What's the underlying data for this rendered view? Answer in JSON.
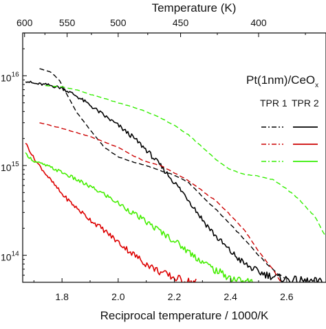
{
  "chart_data": {
    "type": "line",
    "title": "",
    "xlabel": "Reciprocal temperature / 1000/K",
    "x2label": "Temperature (K)",
    "ylabel": "",
    "yscale": "log",
    "xlim": [
      1.66,
      2.74
    ],
    "ylim": [
      50000000000000.0,
      3e+16
    ],
    "xticks": [
      1.8,
      2.0,
      2.2,
      2.4,
      2.6
    ],
    "xtick_labels": [
      "1.8",
      "2.0",
      "2.2",
      "2.4",
      "2.6"
    ],
    "top_ticks": [
      600,
      550,
      500,
      450,
      400
    ],
    "top_tick_labels": [
      "600",
      "550",
      "500",
      "450",
      "400"
    ],
    "yticks": [
      100000000000000.0,
      1000000000000000.0,
      1e+16
    ],
    "ytick_labels": [
      {
        "base": "10",
        "exp": "14"
      },
      {
        "base": "10",
        "exp": "15"
      },
      {
        "base": "10",
        "exp": "16"
      }
    ],
    "grid": false,
    "legend": {
      "title_main": "Pt(1nm)/CeO",
      "title_sub": "x",
      "col1": "TPR 1",
      "col2": "TPR 2",
      "placement": "top-right"
    },
    "series": [
      {
        "run": "TPR 1",
        "color": "#000000",
        "dash": "dash",
        "x": [
          1.72,
          1.76,
          1.79,
          1.82,
          1.85,
          1.9,
          1.95,
          2.0,
          2.05,
          2.1,
          2.15,
          2.2,
          2.25,
          2.3,
          2.35,
          2.4,
          2.45,
          2.5,
          2.54,
          2.57,
          2.6
        ],
        "y": [
          1.2e+16,
          1.1e+16,
          9000000000000000.0,
          6000000000000000.0,
          4000000000000000.0,
          2500000000000000.0,
          1600000000000000.0,
          1250000000000000.0,
          1100000000000000.0,
          1000000000000000.0,
          880000000000000.0,
          780000000000000.0,
          650000000000000.0,
          450000000000000.0,
          320000000000000.0,
          220000000000000.0,
          150000000000000.0,
          100000000000000.0,
          75000000000000.0,
          62000000000000.0,
          54000000000000.0
        ]
      },
      {
        "run": "TPR 2",
        "color": "#000000",
        "dash": "solid",
        "x": [
          1.67,
          1.7,
          1.75,
          1.8,
          1.85,
          1.9,
          1.95,
          2.0,
          2.05,
          2.1,
          2.15,
          2.2,
          2.25,
          2.3,
          2.35,
          2.4,
          2.45,
          2.5,
          2.55,
          2.6,
          2.65,
          2.7,
          2.73
        ],
        "y": [
          8800000000000000.0,
          8200000000000000.0,
          7900000000000000.0,
          7300000000000000.0,
          6000000000000000.0,
          4700000000000000.0,
          3600000000000000.0,
          2800000000000000.0,
          2100000000000000.0,
          1500000000000000.0,
          1000000000000000.0,
          650000000000000.0,
          420000000000000.0,
          250000000000000.0,
          160000000000000.0,
          110000000000000.0,
          80000000000000.0,
          65000000000000.0,
          58000000000000.0,
          54000000000000.0,
          52000000000000.0,
          51000000000000.0,
          50000000000000.0
        ]
      },
      {
        "run": "TPR 1",
        "color": "#cc0000",
        "dash": "dash",
        "x": [
          1.72,
          1.8,
          1.9,
          2.0,
          2.05,
          2.1,
          2.15,
          2.2,
          2.25,
          2.3,
          2.35,
          2.4,
          2.45,
          2.5,
          2.55,
          2.57,
          2.58
        ],
        "y": [
          3000000000000000.0,
          2600000000000000.0,
          2100000000000000.0,
          1600000000000000.0,
          1300000000000000.0,
          1100000000000000.0,
          1000000000000000.0,
          830000000000000.0,
          680000000000000.0,
          520000000000000.0,
          400000000000000.0,
          280000000000000.0,
          190000000000000.0,
          110000000000000.0,
          70000000000000.0,
          56000000000000.0,
          50000000000000.0
        ]
      },
      {
        "run": "TPR 2",
        "color": "#dd0000",
        "dash": "solid",
        "x": [
          1.67,
          1.7,
          1.75,
          1.8,
          1.85,
          1.9,
          1.95,
          2.0,
          2.05,
          2.1,
          2.15,
          2.2,
          2.25,
          2.28
        ],
        "y": [
          1800000000000000.0,
          1200000000000000.0,
          750000000000000.0,
          480000000000000.0,
          340000000000000.0,
          250000000000000.0,
          190000000000000.0,
          140000000000000.0,
          105000000000000.0,
          80000000000000.0,
          65000000000000.0,
          56000000000000.0,
          51000000000000.0,
          50000000000000.0
        ]
      },
      {
        "run": "TPR 1",
        "color": "#33ee00",
        "dash": "dash",
        "x": [
          1.74,
          1.8,
          1.85,
          1.9,
          1.95,
          2.0,
          2.05,
          2.1,
          2.15,
          2.2,
          2.25,
          2.3,
          2.35,
          2.4,
          2.45,
          2.5,
          2.55,
          2.6,
          2.65,
          2.7,
          2.74
        ],
        "y": [
          7800000000000000.0,
          7500000000000000.0,
          7000000000000000.0,
          6200000000000000.0,
          5600000000000000.0,
          5000000000000000.0,
          4500000000000000.0,
          4000000000000000.0,
          3400000000000000.0,
          2800000000000000.0,
          2200000000000000.0,
          1600000000000000.0,
          1150000000000000.0,
          900000000000000.0,
          800000000000000.0,
          760000000000000.0,
          700000000000000.0,
          550000000000000.0,
          400000000000000.0,
          270000000000000.0,
          160000000000000.0
        ]
      },
      {
        "run": "TPR 2",
        "color": "#44ee00",
        "dash": "solid",
        "x": [
          1.67,
          1.7,
          1.75,
          1.8,
          1.85,
          1.9,
          1.95,
          2.0,
          2.05,
          2.1,
          2.15,
          2.2,
          2.25,
          2.3,
          2.35,
          2.4,
          2.45,
          2.48
        ],
        "y": [
          1350000000000000.0,
          1120000000000000.0,
          980000000000000.0,
          840000000000000.0,
          700000000000000.0,
          580000000000000.0,
          480000000000000.0,
          380000000000000.0,
          300000000000000.0,
          235000000000000.0,
          185000000000000.0,
          145000000000000.0,
          110000000000000.0,
          85000000000000.0,
          67000000000000.0,
          56000000000000.0,
          51000000000000.0,
          50000000000000.0
        ]
      }
    ]
  }
}
